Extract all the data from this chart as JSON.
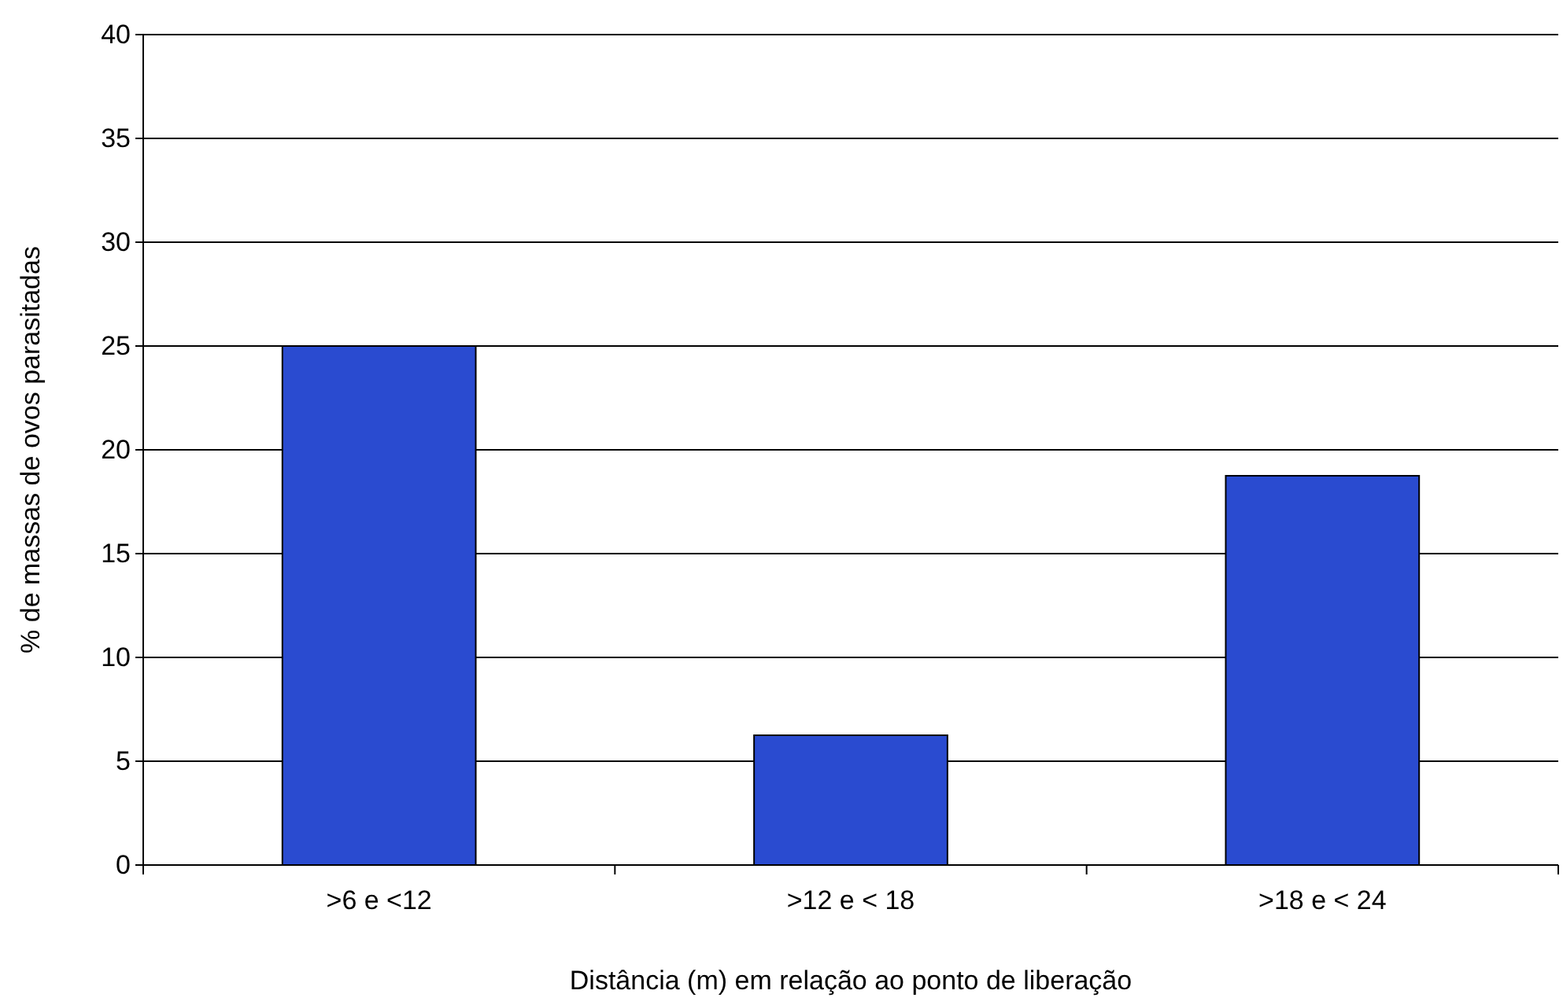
{
  "chart_data": {
    "type": "bar",
    "categories": [
      ">6 e <12",
      ">12 e < 18",
      ">18 e < 24"
    ],
    "values": [
      25,
      6.25,
      18.75
    ],
    "color": "#2a4bd0",
    "xlabel": "Distância (m) em relação ao ponto de liberação",
    "ylabel": "% de massas de ovos parasitadas",
    "ylim": [
      0,
      40
    ],
    "yticks": [
      0,
      5,
      10,
      15,
      20,
      25,
      30,
      35,
      40
    ],
    "grid": "y"
  }
}
